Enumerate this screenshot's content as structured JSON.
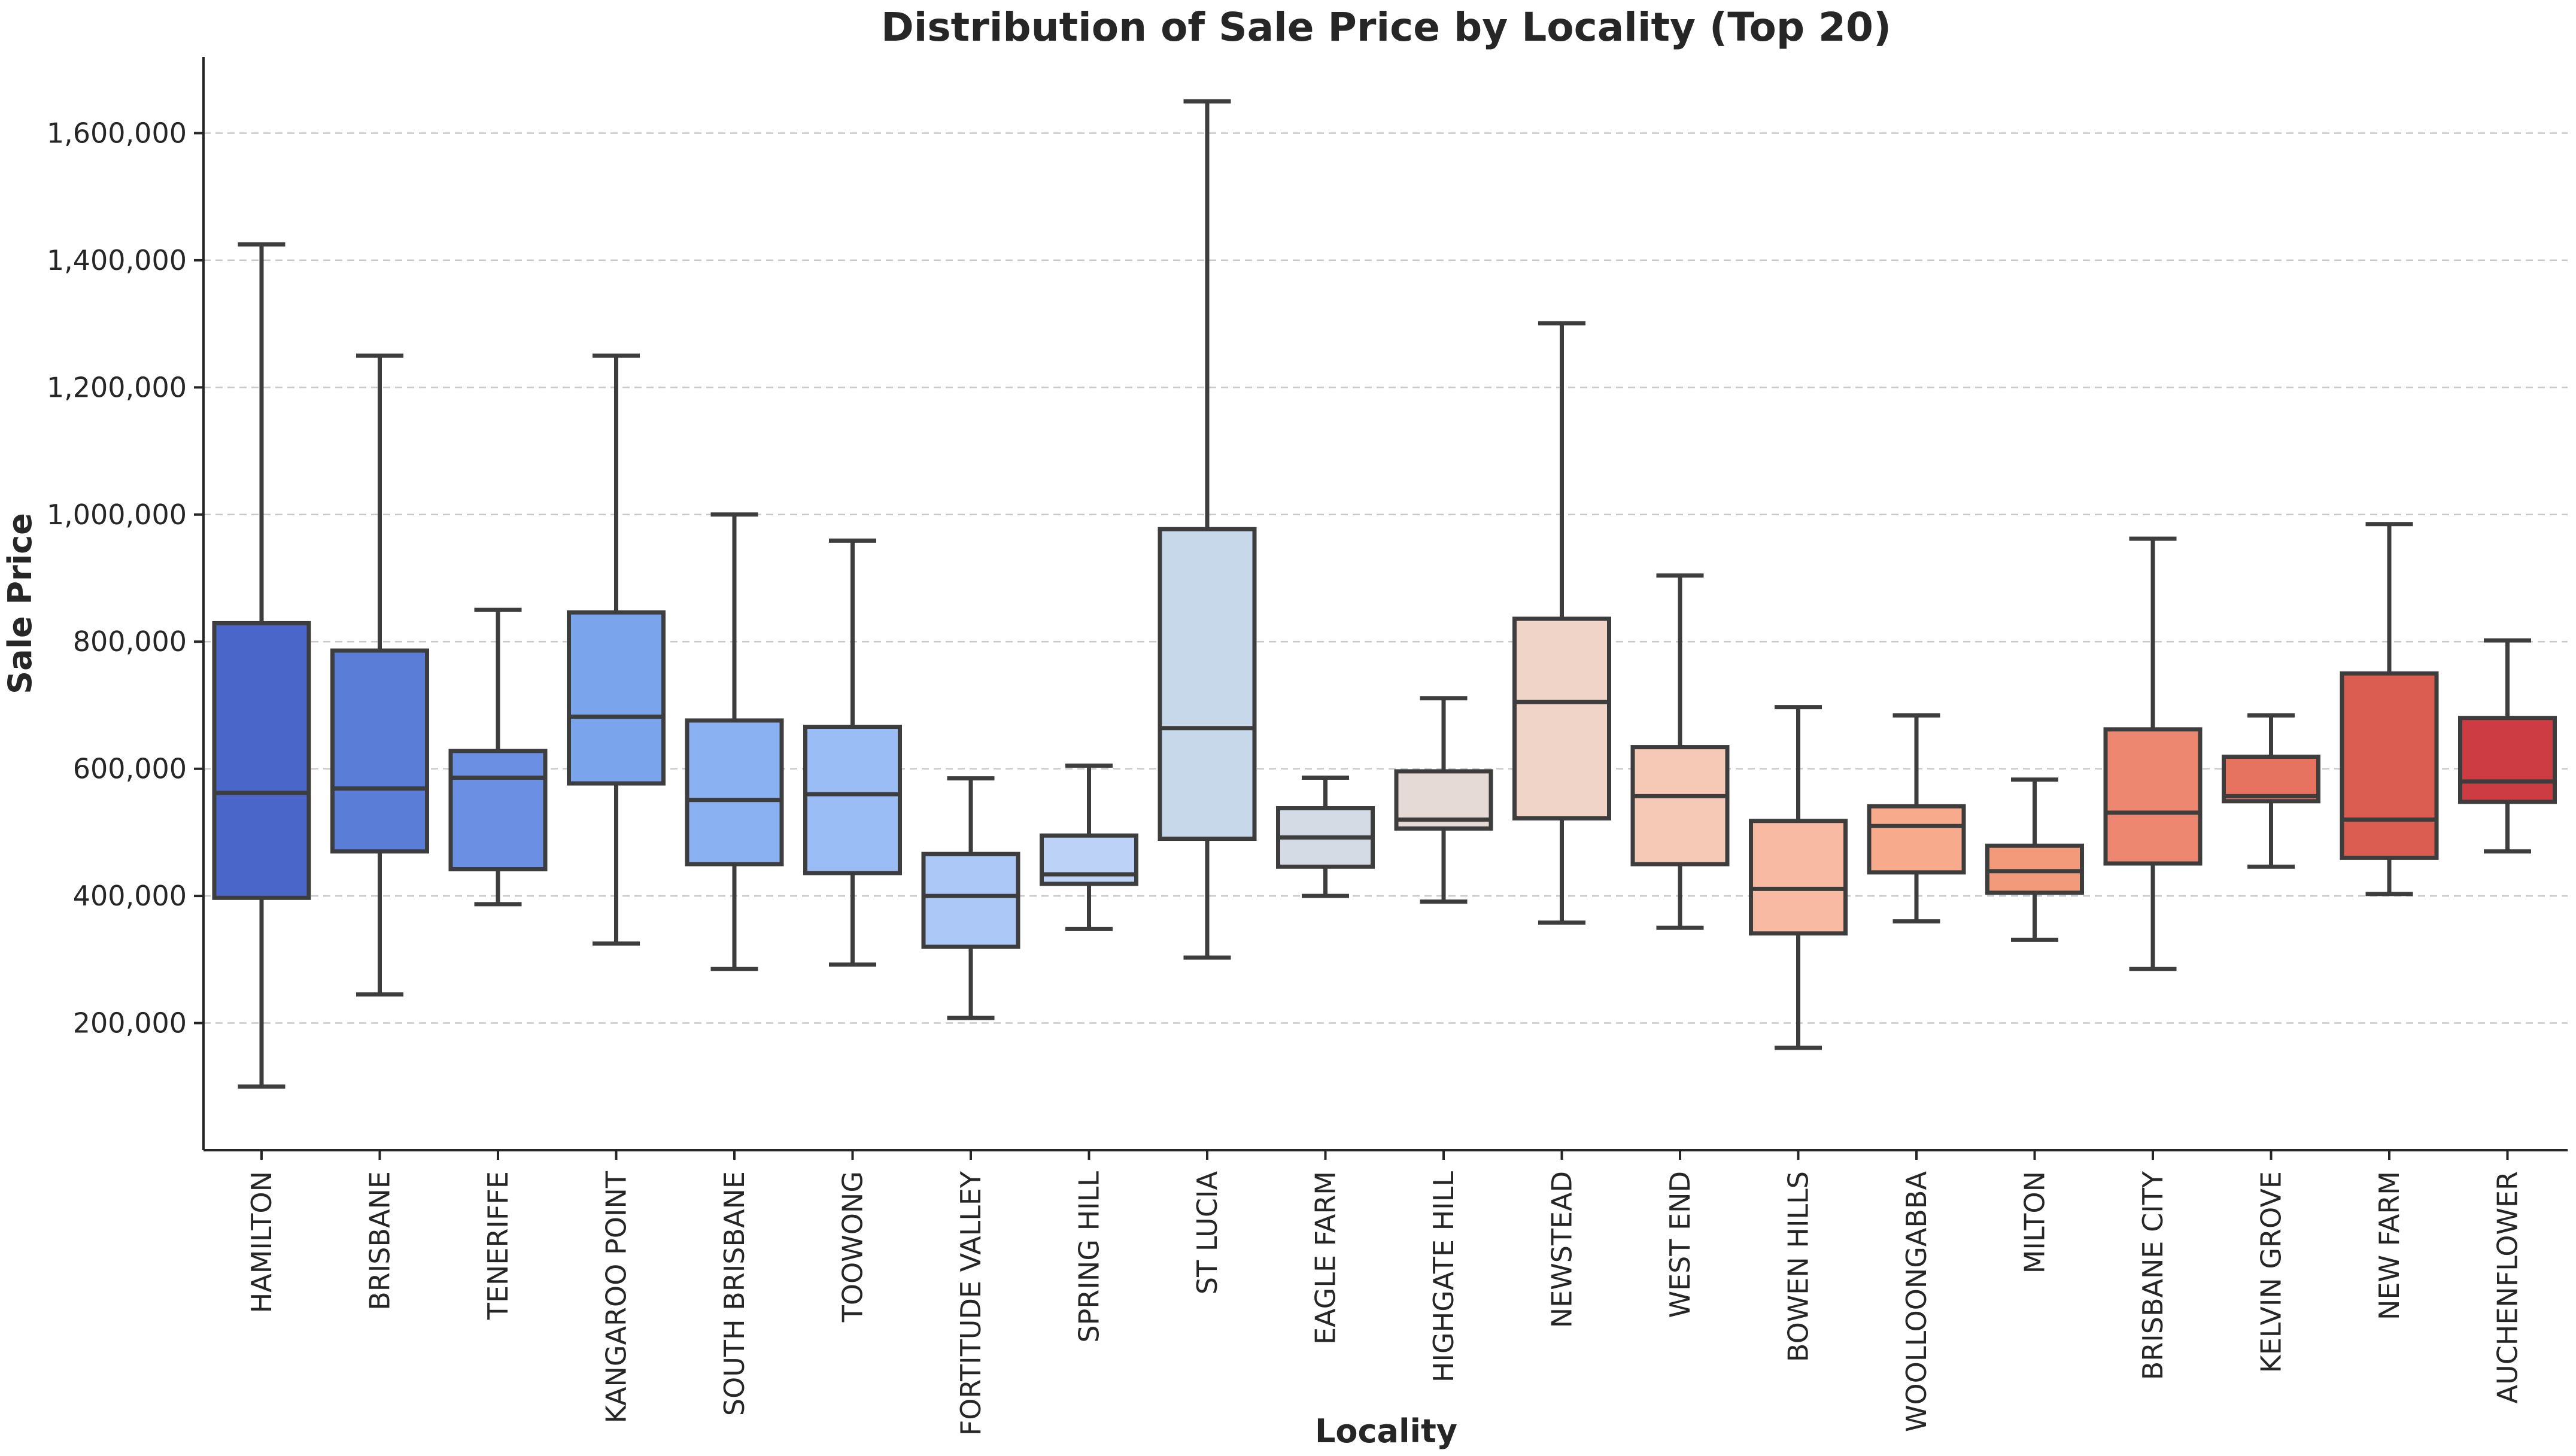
{
  "chart_data": {
    "type": "boxplot",
    "title": "Distribution of Sale Price by Locality (Top 20)",
    "xlabel": "Locality",
    "ylabel": "Sale Price",
    "ylim": [
      0,
      1720000
    ],
    "y_ticks": [
      {
        "value": 200000,
        "label": "200,000"
      },
      {
        "value": 400000,
        "label": "400,000"
      },
      {
        "value": 600000,
        "label": "600,000"
      },
      {
        "value": 800000,
        "label": "800,000"
      },
      {
        "value": 1000000,
        "label": "1,000,000"
      },
      {
        "value": 1200000,
        "label": "1,200,000"
      },
      {
        "value": 1400000,
        "label": "1,400,000"
      },
      {
        "value": 1600000,
        "label": "1,600,000"
      }
    ],
    "grid": true,
    "categories": [
      "HAMILTON",
      "BRISBANE",
      "TENERIFFE",
      "KANGAROO POINT",
      "SOUTH BRISBANE",
      "TOOWONG",
      "FORTITUDE VALLEY",
      "SPRING HILL",
      "ST LUCIA",
      "EAGLE FARM",
      "HIGHGATE HILL",
      "NEWSTEAD",
      "WEST END",
      "BOWEN HILLS",
      "WOOLLOONGABBA",
      "MILTON",
      "BRISBANE CITY",
      "KELVIN GROVE",
      "NEW FARM",
      "AUCHENFLOWER"
    ],
    "boxes": [
      {
        "category": "HAMILTON",
        "min": 100000,
        "q1": 397000,
        "median": 562000,
        "q3": 829000,
        "max": 1425000,
        "color": "#4a66c9"
      },
      {
        "category": "BRISBANE",
        "min": 245000,
        "q1": 470000,
        "median": 569000,
        "q3": 786000,
        "max": 1250000,
        "color": "#5a7ed8"
      },
      {
        "category": "TENERIFFE",
        "min": 387000,
        "q1": 442000,
        "median": 586000,
        "q3": 628000,
        "max": 850000,
        "color": "#6a8fe3"
      },
      {
        "category": "KANGAROO POINT",
        "min": 325000,
        "q1": 577000,
        "median": 682000,
        "q3": 846000,
        "max": 1250000,
        "color": "#7aa4ec"
      },
      {
        "category": "SOUTH BRISBANE",
        "min": 285000,
        "q1": 450000,
        "median": 551000,
        "q3": 676000,
        "max": 1000000,
        "color": "#8ab2f2"
      },
      {
        "category": "TOOWONG",
        "min": 292000,
        "q1": 436000,
        "median": 560000,
        "q3": 666000,
        "max": 959000,
        "color": "#9bbdf5"
      },
      {
        "category": "FORTITUDE VALLEY",
        "min": 208000,
        "q1": 320000,
        "median": 400000,
        "q3": 466000,
        "max": 585000,
        "color": "#abc8f7"
      },
      {
        "category": "SPRING HILL",
        "min": 348000,
        "q1": 419000,
        "median": 434000,
        "q3": 495000,
        "max": 605000,
        "color": "#bcd2f6"
      },
      {
        "category": "ST LUCIA",
        "min": 303000,
        "q1": 490000,
        "median": 664000,
        "q3": 977000,
        "max": 1650000,
        "color": "#c8d8eb"
      },
      {
        "category": "EAGLE FARM",
        "min": 400000,
        "q1": 446000,
        "median": 492000,
        "q3": 538000,
        "max": 586000,
        "color": "#d5dbe5"
      },
      {
        "category": "HIGHGATE HILL",
        "min": 391000,
        "q1": 506000,
        "median": 520000,
        "q3": 596000,
        "max": 711000,
        "color": "#e5dad5"
      },
      {
        "category": "NEWSTEAD",
        "min": 358000,
        "q1": 522000,
        "median": 705000,
        "q3": 836000,
        "max": 1301000,
        "color": "#f0d4c8"
      },
      {
        "category": "WEST END",
        "min": 350000,
        "q1": 450000,
        "median": 557000,
        "q3": 634000,
        "max": 904000,
        "color": "#f6c8b6"
      },
      {
        "category": "BOWEN HILLS",
        "min": 161000,
        "q1": 341000,
        "median": 411000,
        "q3": 518000,
        "max": 697000,
        "color": "#f8baa3"
      },
      {
        "category": "WOOLLOONGABBA",
        "min": 360000,
        "q1": 437000,
        "median": 510000,
        "q3": 541000,
        "max": 684000,
        "color": "#f7aa8c"
      },
      {
        "category": "MILTON",
        "min": 331000,
        "q1": 405000,
        "median": 439000,
        "q3": 479000,
        "max": 583000,
        "color": "#f39a7b"
      },
      {
        "category": "BRISBANE CITY",
        "min": 285000,
        "q1": 451000,
        "median": 531000,
        "q3": 662000,
        "max": 962000,
        "color": "#ee8770"
      },
      {
        "category": "KELVIN GROVE",
        "min": 446000,
        "q1": 549000,
        "median": 557000,
        "q3": 619000,
        "max": 684000,
        "color": "#e67260"
      },
      {
        "category": "NEW FARM",
        "min": 403000,
        "q1": 460000,
        "median": 520000,
        "q3": 750000,
        "max": 985000,
        "color": "#db5c50"
      },
      {
        "category": "AUCHENFLOWER",
        "min": 470000,
        "q1": 548000,
        "median": 580000,
        "q3": 680000,
        "max": 802000,
        "color": "#cc3c42"
      }
    ]
  }
}
